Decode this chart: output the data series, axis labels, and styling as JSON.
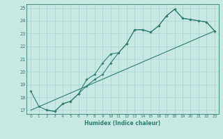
{
  "xlabel": "Humidex (Indice chaleur)",
  "ylabel": "",
  "xlim": [
    -0.5,
    23.5
  ],
  "ylim": [
    16.7,
    25.3
  ],
  "yticks": [
    17,
    18,
    19,
    20,
    21,
    22,
    23,
    24,
    25
  ],
  "xticks": [
    0,
    1,
    2,
    3,
    4,
    5,
    6,
    7,
    8,
    9,
    10,
    11,
    12,
    13,
    14,
    15,
    16,
    17,
    18,
    19,
    20,
    21,
    22,
    23
  ],
  "background_color": "#c8e8e4",
  "line_color": "#2e7d6e",
  "grid_color": "#b0d8d4",
  "line1_x": [
    0,
    1,
    2,
    3,
    4,
    5,
    6,
    7,
    8,
    9,
    10,
    11,
    12,
    13,
    14,
    15,
    16,
    17,
    18,
    19,
    20,
    21,
    22,
    23
  ],
  "line1_y": [
    18.5,
    17.3,
    17.0,
    16.9,
    17.5,
    17.7,
    18.3,
    19.4,
    19.8,
    20.7,
    21.4,
    21.5,
    22.2,
    23.3,
    23.3,
    23.1,
    23.6,
    24.4,
    24.9,
    24.2,
    24.1,
    24.0,
    23.9,
    23.2
  ],
  "line2_x": [
    2,
    3,
    4,
    5,
    6,
    7,
    8,
    9,
    10,
    11,
    12,
    13,
    14,
    15,
    16,
    17,
    18,
    19,
    20,
    21,
    22,
    23
  ],
  "line2_y": [
    17.0,
    16.9,
    17.5,
    17.7,
    18.3,
    18.9,
    19.4,
    19.8,
    20.7,
    21.5,
    22.2,
    23.3,
    23.3,
    23.1,
    23.6,
    24.4,
    24.9,
    24.2,
    24.1,
    24.0,
    23.9,
    23.2
  ],
  "line3_x": [
    0,
    23
  ],
  "line3_y": [
    17.0,
    23.2
  ]
}
